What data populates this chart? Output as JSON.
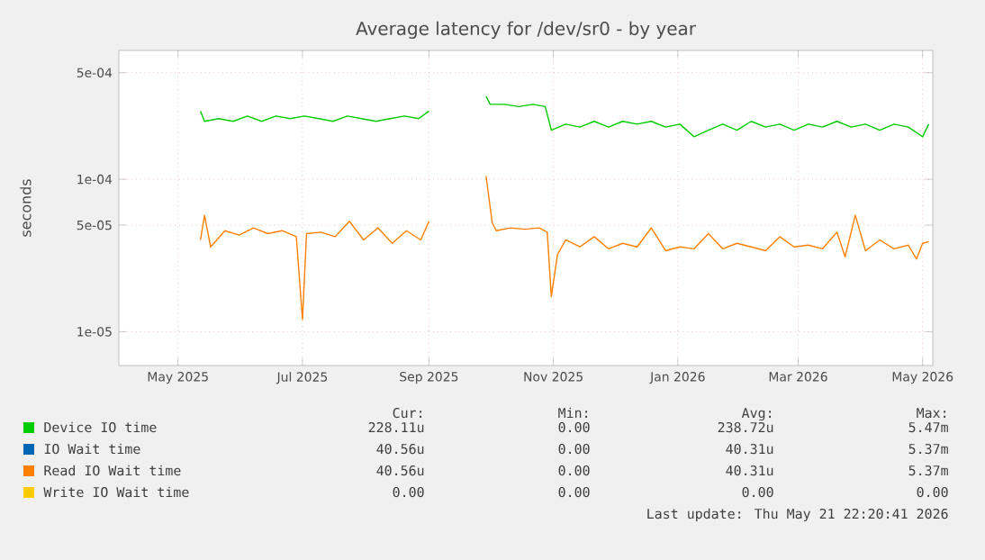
{
  "chart_data": {
    "type": "line",
    "title": "Average latency for /dev/sr0 - by year",
    "ylabel": "seconds",
    "log": "y",
    "grid": true,
    "legend": "bottom left",
    "marker": "none",
    "line_style": "solid",
    "xlim": [
      "2025-04-02",
      "2026-05-06"
    ],
    "ylim": [
      6e-06,
      0.0007
    ],
    "xticks": [
      {
        "value": "2025-05-01",
        "label": "May 2025"
      },
      {
        "value": "2025-07-01",
        "label": "Jul 2025"
      },
      {
        "value": "2025-09-01",
        "label": "Sep 2025"
      },
      {
        "value": "2025-11-01",
        "label": "Nov 2025"
      },
      {
        "value": "2026-01-01",
        "label": "Jan 2026"
      },
      {
        "value": "2026-03-01",
        "label": "Mar 2026"
      },
      {
        "value": "2026-05-01",
        "label": "May 2026"
      }
    ],
    "yticks": [
      {
        "value": 1e-05,
        "label": "1e-05"
      },
      {
        "value": 5e-05,
        "label": "5e-05"
      },
      {
        "value": 0.0001,
        "label": "1e-04"
      },
      {
        "value": 0.0005,
        "label": "5e-04"
      }
    ],
    "series": [
      {
        "name": "Device IO time",
        "color": "#00cc00",
        "x": [
          "2025-05-12",
          "2025-05-14",
          "2025-05-21",
          "2025-05-28",
          "2025-06-04",
          "2025-06-11",
          "2025-06-18",
          "2025-06-25",
          "2025-07-02",
          "2025-07-09",
          "2025-07-16",
          "2025-07-23",
          "2025-07-30",
          "2025-08-06",
          "2025-08-13",
          "2025-08-20",
          "2025-08-27",
          "2025-09-01",
          "2025-09-15",
          "2025-09-29",
          "2025-10-01",
          "2025-10-08",
          "2025-10-15",
          "2025-10-22",
          "2025-10-28",
          "2025-10-31",
          "2025-11-07",
          "2025-11-14",
          "2025-11-21",
          "2025-11-28",
          "2025-12-05",
          "2025-12-12",
          "2025-12-19",
          "2025-12-26",
          "2026-01-02",
          "2026-01-09",
          "2026-01-16",
          "2026-01-23",
          "2026-01-30",
          "2026-02-06",
          "2026-02-13",
          "2026-02-20",
          "2026-02-27",
          "2026-03-06",
          "2026-03-13",
          "2026-03-20",
          "2026-03-27",
          "2026-04-03",
          "2026-04-10",
          "2026-04-17",
          "2026-04-24",
          "2026-05-01",
          "2026-05-04"
        ],
        "values": [
          0.00028,
          0.00024,
          0.00025,
          0.00024,
          0.00026,
          0.00024,
          0.00026,
          0.00025,
          0.00026,
          0.00025,
          0.00024,
          0.00026,
          0.00025,
          0.00024,
          0.00025,
          0.00026,
          0.00025,
          0.00028,
          null,
          0.00035,
          0.00031,
          0.00031,
          0.0003,
          0.00031,
          0.0003,
          0.00021,
          0.00023,
          0.00022,
          0.00024,
          0.00022,
          0.00024,
          0.00023,
          0.00024,
          0.00022,
          0.00023,
          0.00019,
          0.00021,
          0.00023,
          0.00021,
          0.00024,
          0.00022,
          0.00023,
          0.00021,
          0.00023,
          0.00022,
          0.00024,
          0.00022,
          0.00023,
          0.00021,
          0.00023,
          0.00022,
          0.00019,
          0.00023
        ]
      },
      {
        "name": "IO Wait time",
        "color": "#0066b3"
      },
      {
        "name": "Read IO Wait time",
        "color": "#ff8000",
        "x": [
          "2025-05-12",
          "2025-05-14",
          "2025-05-17",
          "2025-05-24",
          "2025-05-31",
          "2025-06-07",
          "2025-06-14",
          "2025-06-21",
          "2025-06-28",
          "2025-07-01",
          "2025-07-03",
          "2025-07-10",
          "2025-07-17",
          "2025-07-24",
          "2025-07-31",
          "2025-08-07",
          "2025-08-14",
          "2025-08-21",
          "2025-08-28",
          "2025-09-01",
          "2025-09-15",
          "2025-09-29",
          "2025-10-02",
          "2025-10-04",
          "2025-10-11",
          "2025-10-18",
          "2025-10-25",
          "2025-10-29",
          "2025-10-31",
          "2025-11-03",
          "2025-11-07",
          "2025-11-14",
          "2025-11-21",
          "2025-11-28",
          "2025-12-05",
          "2025-12-12",
          "2025-12-19",
          "2025-12-26",
          "2026-01-02",
          "2026-01-09",
          "2026-01-16",
          "2026-01-23",
          "2026-01-30",
          "2026-02-06",
          "2026-02-13",
          "2026-02-20",
          "2026-02-27",
          "2026-03-06",
          "2026-03-13",
          "2026-03-20",
          "2026-03-24",
          "2026-03-29",
          "2026-04-03",
          "2026-04-10",
          "2026-04-17",
          "2026-04-24",
          "2026-04-28",
          "2026-05-01",
          "2026-05-04"
        ],
        "values": [
          4e-05,
          5.8e-05,
          3.6e-05,
          4.6e-05,
          4.3e-05,
          4.8e-05,
          4.4e-05,
          4.6e-05,
          4.2e-05,
          1.2e-05,
          4.4e-05,
          4.5e-05,
          4.2e-05,
          5.3e-05,
          4e-05,
          4.8e-05,
          3.8e-05,
          4.6e-05,
          4e-05,
          5.3e-05,
          null,
          0.000105,
          5.2e-05,
          4.6e-05,
          4.8e-05,
          4.7e-05,
          4.8e-05,
          4.5e-05,
          1.7e-05,
          3.2e-05,
          4e-05,
          3.6e-05,
          4.2e-05,
          3.5e-05,
          3.8e-05,
          3.6e-05,
          4.8e-05,
          3.4e-05,
          3.6e-05,
          3.5e-05,
          4.4e-05,
          3.5e-05,
          3.8e-05,
          3.6e-05,
          3.4e-05,
          4.2e-05,
          3.6e-05,
          3.7e-05,
          3.5e-05,
          4.5e-05,
          3.1e-05,
          5.8e-05,
          3.4e-05,
          4e-05,
          3.5e-05,
          3.7e-05,
          3e-05,
          3.8e-05,
          3.9e-05
        ]
      },
      {
        "name": "Write IO Wait time",
        "color": "#ffcc00"
      }
    ],
    "annotations": [
      "Cur:",
      "Min:",
      "Avg:",
      "Max:",
      "228.11u",
      "0.00",
      "238.72u",
      "5.47m",
      "40.56u",
      "0.00",
      "40.31u",
      "5.37m",
      "40.56u",
      "0.00",
      "40.31u",
      "5.37m",
      "0.00",
      "0.00",
      "0.00",
      "0.00",
      "Last update: Thu May 21 22:20:41 2026"
    ]
  }
}
